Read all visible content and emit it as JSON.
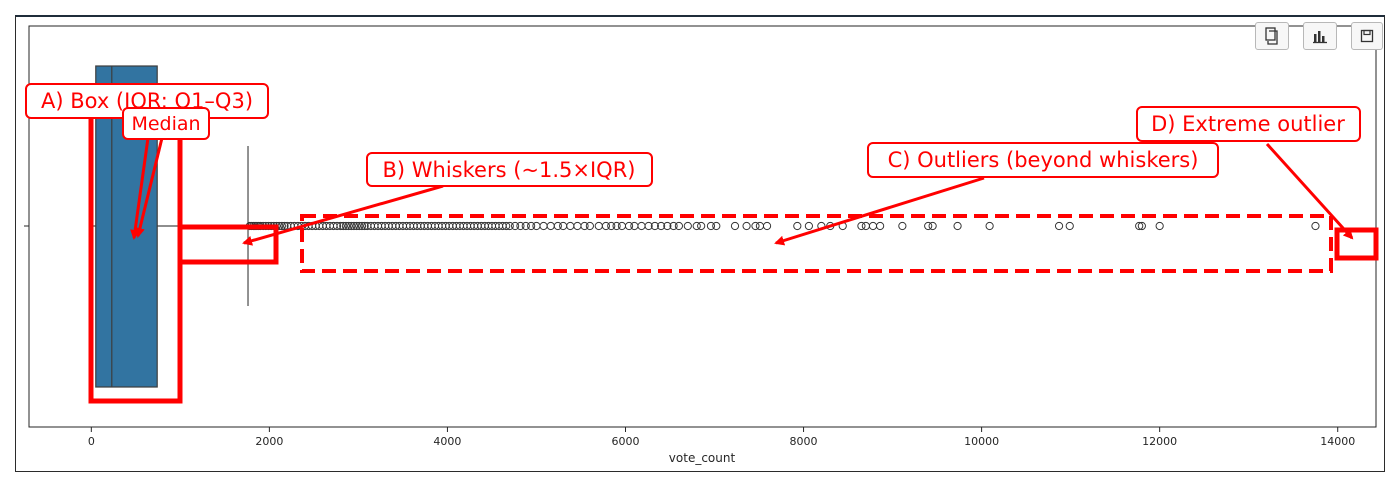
{
  "toolbar": {
    "buttons": [
      {
        "icon": "copy-icon"
      },
      {
        "icon": "bar-chart-icon"
      },
      {
        "icon": "save-icon"
      }
    ]
  },
  "chart_data": {
    "type": "boxplot",
    "orientation": "horizontal",
    "xlabel": "vote_count",
    "ylabel": "",
    "xlim": [
      -700,
      14430
    ],
    "xticks": [
      0,
      2000,
      4000,
      6000,
      8000,
      10000,
      12000,
      14000
    ],
    "grid": false,
    "box": {
      "whisker_low": 0,
      "q1": 50,
      "median": 230,
      "q3": 740,
      "whisker_high": 1760,
      "color": "#3274a1"
    },
    "outliers": [
      1780,
      1800,
      1820,
      1840,
      1860,
      1880,
      1900,
      1930,
      1960,
      1990,
      2020,
      2050,
      2080,
      2110,
      2140,
      2170,
      2200,
      2240,
      2280,
      2320,
      2360,
      2400,
      2440,
      2480,
      2520,
      2560,
      2600,
      2640,
      2680,
      2720,
      2760,
      2800,
      2830,
      2860,
      2890,
      2920,
      2950,
      2980,
      3010,
      3040,
      3070,
      3100,
      3140,
      3180,
      3220,
      3260,
      3300,
      3340,
      3380,
      3420,
      3460,
      3500,
      3540,
      3580,
      3620,
      3660,
      3700,
      3740,
      3780,
      3820,
      3860,
      3900,
      3940,
      3980,
      4020,
      4060,
      4100,
      4140,
      4180,
      4220,
      4260,
      4300,
      4340,
      4380,
      4420,
      4460,
      4500,
      4540,
      4580,
      4620,
      4660,
      4700,
      4760,
      4820,
      4880,
      4940,
      5000,
      5080,
      5160,
      5240,
      5300,
      5380,
      5460,
      5540,
      5600,
      5700,
      5780,
      5840,
      5900,
      5960,
      6040,
      6100,
      6180,
      6260,
      6330,
      6400,
      6470,
      6540,
      6600,
      6700,
      6800,
      6850,
      6960,
      7020,
      7230,
      7360,
      7460,
      7510,
      7590,
      7930,
      8060,
      8200,
      8300,
      8440,
      8650,
      8700,
      8780,
      8860,
      9110,
      9400,
      9450,
      9730,
      10090,
      10870,
      10990,
      11770,
      11800,
      12000,
      13750
    ],
    "outlier_color": "#333333"
  },
  "annotations": {
    "color": "#ff0000",
    "a_label": "A) Box (IQR: Q1–Q3)",
    "median_label": "Median",
    "b_label": "B) Whiskers (~1.5×IQR)",
    "c_label": "C) Outliers (beyond whiskers)",
    "d_label": "D) Extreme outlier"
  }
}
